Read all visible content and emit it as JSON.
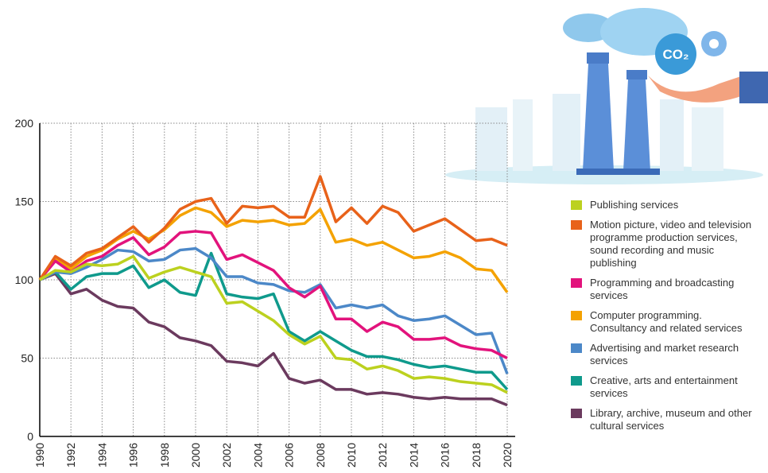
{
  "chart_data": {
    "type": "line",
    "annotations": [
      "CO₂"
    ],
    "x": [
      1990,
      1991,
      1992,
      1993,
      1994,
      1995,
      1996,
      1997,
      1998,
      1999,
      2000,
      2001,
      2002,
      2003,
      2004,
      2005,
      2006,
      2007,
      2008,
      2009,
      2010,
      2011,
      2012,
      2013,
      2014,
      2015,
      2016,
      2017,
      2018,
      2019,
      2020
    ],
    "xlim": [
      1990,
      2020
    ],
    "xticks": [
      1990,
      1992,
      1994,
      1996,
      1998,
      2000,
      2002,
      2004,
      2006,
      2008,
      2010,
      2012,
      2014,
      2016,
      2018,
      2020
    ],
    "ylim": [
      0,
      200
    ],
    "yticks": [
      0,
      50,
      100,
      150,
      200
    ],
    "grid": true,
    "legend": "right",
    "series": [
      {
        "name": "Publishing services",
        "color": "#bcd11f",
        "values": [
          100,
          106,
          105,
          110,
          109,
          110,
          115,
          101,
          105,
          108,
          105,
          102,
          85,
          86,
          80,
          74,
          65,
          59,
          64,
          50,
          49,
          43,
          45,
          42,
          37,
          38,
          37,
          35,
          34,
          33,
          28
        ]
      },
      {
        "name": "Motion picture, video and television programme production services, sound recording and music publishing",
        "color": "#e8621a",
        "values": [
          100,
          115,
          109,
          117,
          120,
          127,
          134,
          124,
          133,
          145,
          150,
          152,
          136,
          147,
          146,
          147,
          140,
          140,
          166,
          137,
          146,
          136,
          147,
          143,
          131,
          135,
          139,
          132,
          125,
          126,
          122
        ]
      },
      {
        "name": "Programming and broadcasting services",
        "color": "#e2137c",
        "values": [
          100,
          112,
          105,
          112,
          115,
          122,
          127,
          116,
          121,
          130,
          131,
          130,
          113,
          116,
          111,
          106,
          95,
          89,
          96,
          75,
          75,
          67,
          73,
          70,
          62,
          62,
          63,
          58,
          56,
          55,
          50
        ]
      },
      {
        "name": "Computer programming. Consultancy and related services",
        "color": "#f4a200",
        "values": [
          100,
          114,
          107,
          115,
          119,
          126,
          131,
          126,
          132,
          141,
          146,
          143,
          134,
          138,
          137,
          138,
          135,
          136,
          145,
          124,
          126,
          122,
          124,
          119,
          114,
          115,
          118,
          114,
          107,
          106,
          92
        ]
      },
      {
        "name": "Advertising and market research services",
        "color": "#4c88c8",
        "values": [
          100,
          105,
          104,
          108,
          113,
          119,
          118,
          112,
          113,
          119,
          120,
          114,
          102,
          102,
          98,
          97,
          93,
          92,
          97,
          82,
          84,
          82,
          84,
          77,
          74,
          75,
          77,
          71,
          65,
          66,
          40
        ]
      },
      {
        "name": "Creative, arts and entertainment services",
        "color": "#0f9a8c",
        "values": [
          100,
          105,
          94,
          102,
          104,
          104,
          109,
          95,
          100,
          92,
          90,
          117,
          91,
          89,
          88,
          91,
          67,
          61,
          67,
          61,
          55,
          51,
          51,
          49,
          46,
          44,
          45,
          43,
          41,
          41,
          30
        ]
      },
      {
        "name": "Library, archive, museum and other cultural services",
        "color": "#6b3a5e",
        "values": [
          100,
          104,
          91,
          94,
          87,
          83,
          82,
          73,
          70,
          63,
          61,
          58,
          48,
          47,
          45,
          53,
          37,
          34,
          36,
          30,
          30,
          27,
          28,
          27,
          25,
          24,
          25,
          24,
          24,
          24,
          20
        ]
      }
    ]
  }
}
